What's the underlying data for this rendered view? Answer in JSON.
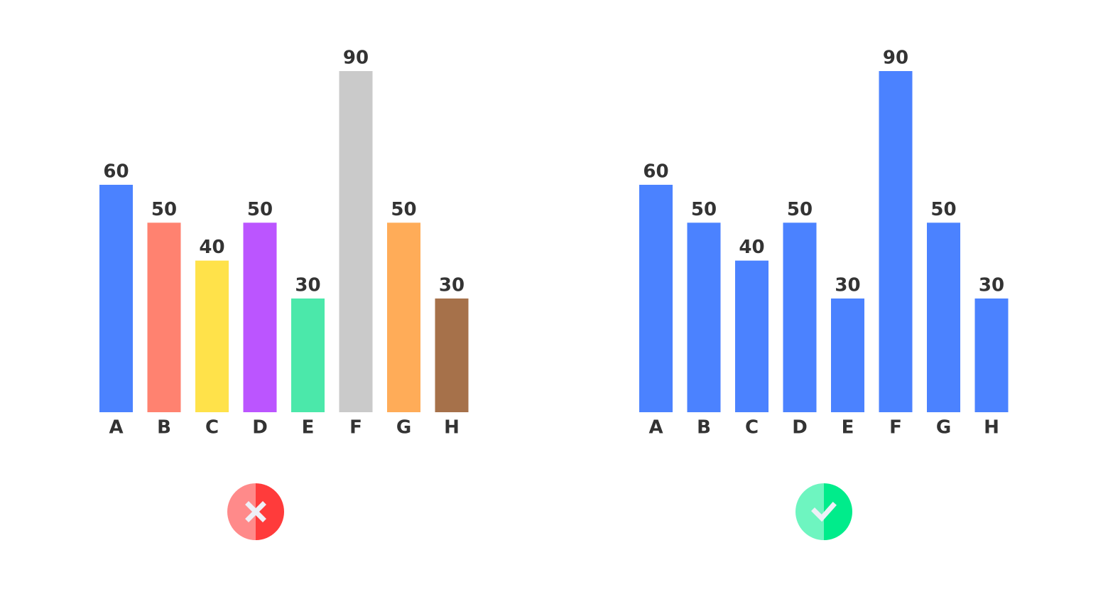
{
  "chart_data": [
    {
      "type": "bar",
      "categories": [
        "A",
        "B",
        "C",
        "D",
        "E",
        "F",
        "G",
        "H"
      ],
      "values": [
        60,
        50,
        40,
        50,
        30,
        90,
        50,
        30
      ],
      "colors": [
        "#4b82ff",
        "#ff8270",
        "#ffe24a",
        "#bb55ff",
        "#4be8aa",
        "#cacaca",
        "#ffac58",
        "#a6714a"
      ]
    },
    {
      "type": "bar",
      "categories": [
        "A",
        "B",
        "C",
        "D",
        "E",
        "F",
        "G",
        "H"
      ],
      "values": [
        60,
        50,
        40,
        50,
        30,
        90,
        50,
        30
      ],
      "color": "#4b82ff"
    }
  ]
}
